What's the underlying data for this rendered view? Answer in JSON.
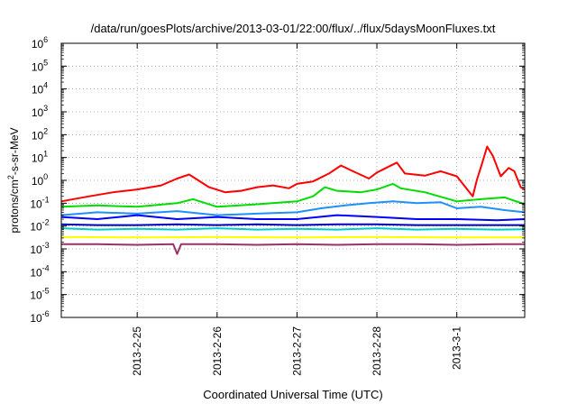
{
  "chart_data": {
    "type": "line",
    "title": "/data/run/goesPlots/archive/2013-03-01/22:00/flux/../flux/5daysMoonFluxes.txt",
    "xlabel": "Coordinated Universal Time (UTC)",
    "ylabel_parts": {
      "pre": "protons/cm",
      "sup": "2",
      "post": "-s-sr-MeV"
    },
    "y_scale": "log",
    "ylim_exponents": [
      -6,
      6
    ],
    "y_ticks": [
      {
        "base": "10",
        "exp": "6"
      },
      {
        "base": "10",
        "exp": "5"
      },
      {
        "base": "10",
        "exp": "4"
      },
      {
        "base": "10",
        "exp": "3"
      },
      {
        "base": "10",
        "exp": "2"
      },
      {
        "base": "10",
        "exp": "1"
      },
      {
        "base": "10",
        "exp": "0"
      },
      {
        "base": "10",
        "exp": "-1"
      },
      {
        "base": "10",
        "exp": "-2"
      },
      {
        "base": "10",
        "exp": "-3"
      },
      {
        "base": "10",
        "exp": "-4"
      },
      {
        "base": "10",
        "exp": "-5"
      },
      {
        "base": "10",
        "exp": "-6"
      }
    ],
    "x_ticks": [
      "2013-2-25",
      "2013-2-26",
      "2013-2-27",
      "2013-2-28",
      "2013-3-1"
    ],
    "x_range_days": [
      -0.95,
      4.85
    ],
    "grid": true,
    "legend": "none",
    "series": [
      {
        "color": "#ff0000",
        "points": [
          [
            -0.95,
            0.12
          ],
          [
            -0.6,
            0.2
          ],
          [
            -0.3,
            0.3
          ],
          [
            0.0,
            0.4
          ],
          [
            0.3,
            0.6
          ],
          [
            0.5,
            1.2
          ],
          [
            0.65,
            1.8
          ],
          [
            0.9,
            0.5
          ],
          [
            1.1,
            0.3
          ],
          [
            1.3,
            0.35
          ],
          [
            1.5,
            0.5
          ],
          [
            1.7,
            0.6
          ],
          [
            1.9,
            0.45
          ],
          [
            2.0,
            0.7
          ],
          [
            2.2,
            0.9
          ],
          [
            2.4,
            2.0
          ],
          [
            2.55,
            4.5
          ],
          [
            2.7,
            2.5
          ],
          [
            2.9,
            1.2
          ],
          [
            3.0,
            2.2
          ],
          [
            3.15,
            4.0
          ],
          [
            3.25,
            6.0
          ],
          [
            3.35,
            2.0
          ],
          [
            3.6,
            1.6
          ],
          [
            3.8,
            2.5
          ],
          [
            4.0,
            1.5
          ],
          [
            4.2,
            0.2
          ],
          [
            4.25,
            1.0
          ],
          [
            4.32,
            6.0
          ],
          [
            4.38,
            30
          ],
          [
            4.45,
            12
          ],
          [
            4.55,
            1.5
          ],
          [
            4.65,
            3.5
          ],
          [
            4.72,
            2.5
          ],
          [
            4.8,
            0.5
          ],
          [
            4.85,
            0.4
          ]
        ]
      },
      {
        "color": "#00dd00",
        "points": [
          [
            -0.95,
            0.07
          ],
          [
            -0.5,
            0.08
          ],
          [
            0.0,
            0.07
          ],
          [
            0.5,
            0.1
          ],
          [
            0.7,
            0.15
          ],
          [
            1.0,
            0.07
          ],
          [
            1.5,
            0.09
          ],
          [
            2.0,
            0.12
          ],
          [
            2.2,
            0.2
          ],
          [
            2.35,
            0.5
          ],
          [
            2.5,
            0.35
          ],
          [
            2.8,
            0.3
          ],
          [
            3.0,
            0.4
          ],
          [
            3.2,
            0.7
          ],
          [
            3.3,
            0.45
          ],
          [
            3.6,
            0.3
          ],
          [
            4.0,
            0.12
          ],
          [
            4.3,
            0.15
          ],
          [
            4.6,
            0.18
          ],
          [
            4.85,
            0.09
          ]
        ]
      },
      {
        "color": "#1e90ff",
        "points": [
          [
            -0.95,
            0.03
          ],
          [
            -0.5,
            0.04
          ],
          [
            0.0,
            0.035
          ],
          [
            0.5,
            0.045
          ],
          [
            1.0,
            0.03
          ],
          [
            1.5,
            0.035
          ],
          [
            2.0,
            0.04
          ],
          [
            2.3,
            0.06
          ],
          [
            2.6,
            0.08
          ],
          [
            2.9,
            0.1
          ],
          [
            3.2,
            0.12
          ],
          [
            3.5,
            0.1
          ],
          [
            3.8,
            0.11
          ],
          [
            4.0,
            0.06
          ],
          [
            4.3,
            0.07
          ],
          [
            4.6,
            0.05
          ],
          [
            4.85,
            0.04
          ]
        ]
      },
      {
        "color": "#0000ff",
        "points": [
          [
            -0.95,
            0.025
          ],
          [
            -0.5,
            0.02
          ],
          [
            0.0,
            0.03
          ],
          [
            0.5,
            0.02
          ],
          [
            1.0,
            0.025
          ],
          [
            1.5,
            0.02
          ],
          [
            2.0,
            0.02
          ],
          [
            2.5,
            0.03
          ],
          [
            3.0,
            0.025
          ],
          [
            3.5,
            0.02
          ],
          [
            4.0,
            0.02
          ],
          [
            4.5,
            0.018
          ],
          [
            4.85,
            0.02
          ]
        ]
      },
      {
        "color": "#0000bb",
        "points": [
          [
            -0.95,
            0.012
          ],
          [
            -0.5,
            0.011
          ],
          [
            0.0,
            0.011
          ],
          [
            0.5,
            0.012
          ],
          [
            1.0,
            0.011
          ],
          [
            1.5,
            0.012
          ],
          [
            2.0,
            0.011
          ],
          [
            2.5,
            0.012
          ],
          [
            3.0,
            0.012
          ],
          [
            3.5,
            0.011
          ],
          [
            4.0,
            0.011
          ],
          [
            4.5,
            0.011
          ],
          [
            4.85,
            0.011
          ]
        ]
      },
      {
        "color": "#00cccc",
        "points": [
          [
            -0.95,
            0.008
          ],
          [
            -0.5,
            0.007
          ],
          [
            0.0,
            0.0075
          ],
          [
            0.5,
            0.007
          ],
          [
            1.0,
            0.008
          ],
          [
            1.5,
            0.007
          ],
          [
            2.0,
            0.0075
          ],
          [
            2.5,
            0.007
          ],
          [
            3.0,
            0.008
          ],
          [
            3.5,
            0.007
          ],
          [
            4.0,
            0.0075
          ],
          [
            4.5,
            0.007
          ],
          [
            4.85,
            0.0072
          ]
        ]
      },
      {
        "color": "#ffff00",
        "points": [
          [
            -0.95,
            0.0033
          ],
          [
            0.0,
            0.0032
          ],
          [
            1.0,
            0.0033
          ],
          [
            2.0,
            0.0032
          ],
          [
            3.0,
            0.0033
          ],
          [
            4.0,
            0.0032
          ],
          [
            4.85,
            0.0032
          ]
        ]
      },
      {
        "color": "#993366",
        "points": [
          [
            -0.95,
            0.0016
          ],
          [
            -0.5,
            0.0016
          ],
          [
            0.0,
            0.0015
          ],
          [
            0.45,
            0.0016
          ],
          [
            0.5,
            0.0006
          ],
          [
            0.55,
            0.0016
          ],
          [
            1.0,
            0.0016
          ],
          [
            1.5,
            0.0015
          ],
          [
            2.0,
            0.0016
          ],
          [
            2.5,
            0.0015
          ],
          [
            3.0,
            0.0016
          ],
          [
            3.5,
            0.0016
          ],
          [
            4.0,
            0.0015
          ],
          [
            4.5,
            0.0016
          ],
          [
            4.85,
            0.0016
          ]
        ]
      }
    ]
  }
}
